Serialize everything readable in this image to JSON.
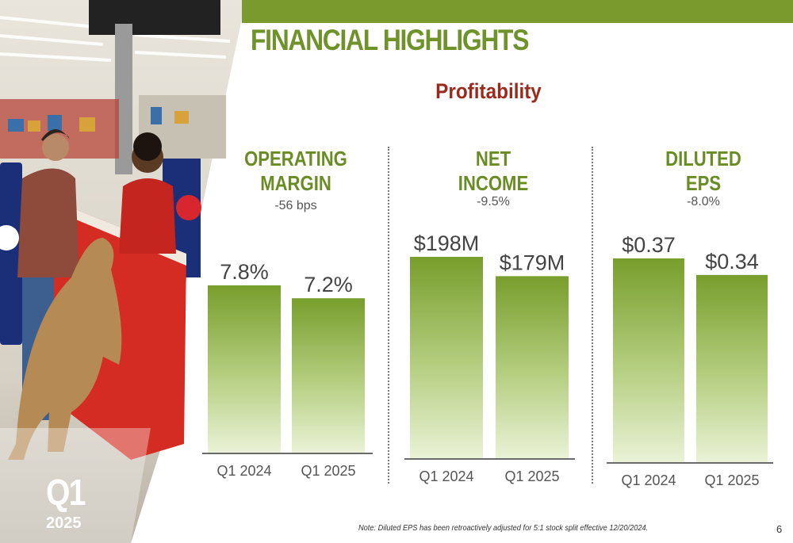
{
  "header": {
    "title": "FINANCIAL HIGHLIGHTS",
    "subtitle": "Profitability"
  },
  "badge": {
    "quarter": "Q1",
    "year": "2025"
  },
  "metrics": [
    {
      "title_line1": "OPERATING",
      "title_line2": "MARGIN",
      "change": "-56 bps"
    },
    {
      "title_line1": "NET",
      "title_line2": "INCOME",
      "change": "-9.5%"
    },
    {
      "title_line1": "DILUTED",
      "title_line2": "EPS",
      "change": "-8.0%"
    }
  ],
  "chart_data": [
    {
      "type": "bar",
      "categories": [
        "Q1 2024",
        "Q1 2025"
      ],
      "values": [
        7.8,
        7.2
      ],
      "data_labels": [
        "7.8%",
        "7.2%"
      ]
    },
    {
      "type": "bar",
      "categories": [
        "Q1 2024",
        "Q1 2025"
      ],
      "values": [
        198,
        179
      ],
      "data_labels": [
        "$198M",
        "$179M"
      ]
    },
    {
      "type": "bar",
      "categories": [
        "Q1 2024",
        "Q1 2025"
      ],
      "values": [
        0.37,
        0.34
      ],
      "data_labels": [
        "$0.37",
        "$0.34"
      ]
    }
  ],
  "footer": {
    "note": "Note: Diluted EPS has been retroactively adjusted for 5:1 stock split effective 12/20/2024.",
    "page_number": "6"
  },
  "colors": {
    "accent_green": "#7a9a2e",
    "title_green": "#6f932a",
    "subtitle_red": "#9c2a1c"
  }
}
